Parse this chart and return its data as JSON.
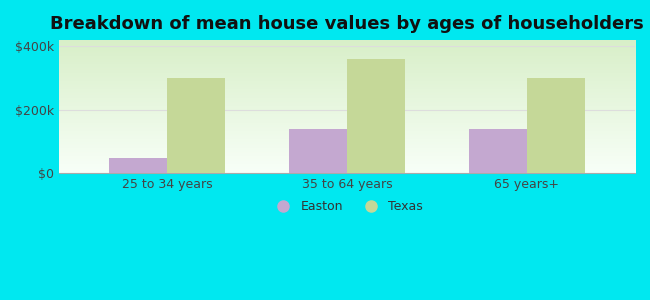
{
  "title": "Breakdown of mean house values by ages of householders",
  "categories": [
    "25 to 34 years",
    "35 to 64 years",
    "65 years+"
  ],
  "easton_values": [
    50000,
    140000,
    140000
  ],
  "texas_values": [
    300000,
    360000,
    300000
  ],
  "easton_color": "#c4a8d0",
  "texas_color": "#c5d898",
  "background_color": "#00e8f0",
  "plot_bg_top": "#d8efc8",
  "plot_bg_bottom": "#f8fff8",
  "ylim": [
    0,
    420000
  ],
  "yticks": [
    0,
    200000,
    400000
  ],
  "ytick_labels": [
    "$0",
    "$200k",
    "$400k"
  ],
  "legend_easton": "Easton",
  "legend_texas": "Texas",
  "bar_width": 0.32,
  "title_fontsize": 13,
  "tick_fontsize": 9,
  "legend_fontsize": 9,
  "grid_color": "#dddddd"
}
